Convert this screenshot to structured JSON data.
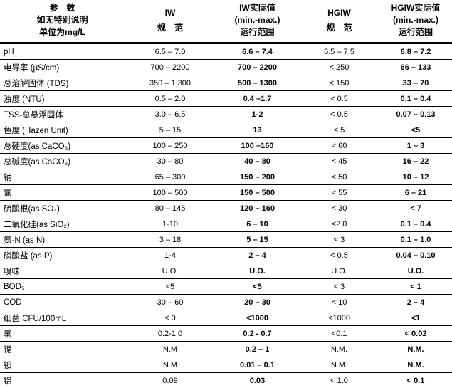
{
  "table": {
    "header": {
      "col1": [
        "参　数",
        "如无特别说明",
        "单位为mg/L"
      ],
      "col2": [
        "IW",
        "规　范"
      ],
      "col3": [
        "IW实际值",
        "(min.-max.)",
        "运行范围"
      ],
      "col4": [
        "HGIW",
        "规　范"
      ],
      "col5": [
        "HGIW实际值",
        "(min.-max.)",
        "运行范围"
      ]
    },
    "rows": [
      {
        "param": "pH",
        "iw_spec": "6.5 – 7.0",
        "iw_actual": "6.6 – 7.4",
        "hgiw_spec": "6.5 – 7.5",
        "hgiw_actual": "6.8 – 7.2"
      },
      {
        "param": "电导率 (μS/cm)",
        "iw_spec": "700 – 2200",
        "iw_actual": "700 – 2200",
        "hgiw_spec": "< 250",
        "hgiw_actual": "66 – 133"
      },
      {
        "param": "总溶解固体 (TDS)",
        "iw_spec": "350 – 1,300",
        "iw_actual": "500 – 1300",
        "hgiw_spec": "< 150",
        "hgiw_actual": "33 – 70"
      },
      {
        "param": "浊度 (NTU)",
        "iw_spec": "0.5 – 2.0",
        "iw_actual": "0.4 –1.7",
        "hgiw_spec": "< 0.5",
        "hgiw_actual": "0.1 – 0.4"
      },
      {
        "param": "TSS-总悬浮固体",
        "iw_spec": "3.0 – 6.5",
        "iw_actual": "1-2",
        "hgiw_spec": "< 0.5",
        "hgiw_actual": "0.07 – 0.13"
      },
      {
        "param": "色度 (Hazen Unit)",
        "iw_spec": "5 – 15",
        "iw_actual": "13",
        "hgiw_spec": "< 5",
        "hgiw_actual": "<5"
      },
      {
        "param": "总硬度(as CaCO₃)",
        "iw_spec": "100 – 250",
        "iw_actual": "100 –160",
        "hgiw_spec": "< 60",
        "hgiw_actual": "1 – 3"
      },
      {
        "param": "总碱度(as CaCO₃)",
        "iw_spec": "30 – 80",
        "iw_actual": "40 – 80",
        "hgiw_spec": "< 45",
        "hgiw_actual": "16 – 22"
      },
      {
        "param": "钠",
        "iw_spec": "65 – 300",
        "iw_actual": "150 – 200",
        "hgiw_spec": "< 50",
        "hgiw_actual": "10 – 12"
      },
      {
        "param": "氯",
        "iw_spec": "100 – 500",
        "iw_actual": "150 – 500",
        "hgiw_spec": "< 55",
        "hgiw_actual": "6 – 21"
      },
      {
        "param": "硫酸根(as SO₄)",
        "iw_spec": "80 – 145",
        "iw_actual": "120 – 160",
        "hgiw_spec": "< 30",
        "hgiw_actual": "< 7"
      },
      {
        "param": "二氧化硅(as SiO₂)",
        "iw_spec": "1-10",
        "iw_actual": "6 – 10",
        "hgiw_spec": "<2.0",
        "hgiw_actual": "0.1 – 0.4"
      },
      {
        "param": "氨-N (as N)",
        "iw_spec": "3 – 18",
        "iw_actual": "5 – 15",
        "hgiw_spec": "< 3",
        "hgiw_actual": "0.1 – 1.0"
      },
      {
        "param": "磷酸盐 (as P)",
        "iw_spec": "1-4",
        "iw_actual": "2 – 4",
        "hgiw_spec": "< 0.5",
        "hgiw_actual": "0.04 – 0.10"
      },
      {
        "param": "嗅味",
        "iw_spec": "U.O.",
        "iw_actual": "U.O.",
        "hgiw_spec": "U.O.",
        "hgiw_actual": "U.O."
      },
      {
        "param": "BOD₅",
        "iw_spec": "<5",
        "iw_actual": "<5",
        "hgiw_spec": "< 3",
        "hgiw_actual": "< 1"
      },
      {
        "param": "COD",
        "iw_spec": "30 – 60",
        "iw_actual": "20 – 30",
        "hgiw_spec": "< 10",
        "hgiw_actual": "2 – 4"
      },
      {
        "param": "细菌 CFU/100mL",
        "iw_spec": "< 0",
        "iw_actual": "<1000",
        "hgiw_spec": "<1000",
        "hgiw_actual": "<1"
      },
      {
        "param": "氟",
        "iw_spec": "0.2-1.0",
        "iw_actual": "0.2 - 0.7",
        "hgiw_spec": "<0.1",
        "hgiw_actual": "< 0.02"
      },
      {
        "param": "锶",
        "iw_spec": "N.M",
        "iw_actual": "0.2 – 1",
        "hgiw_spec": "N.M.",
        "hgiw_actual": "N.M."
      },
      {
        "param": "钡",
        "iw_spec": "N.M",
        "iw_actual": "0.01 – 0.1",
        "hgiw_spec": "N.M.",
        "hgiw_actual": "N.M."
      },
      {
        "param": "铝",
        "iw_spec": "0.09",
        "iw_actual": "0.03",
        "hgiw_spec": "< 1.0",
        "hgiw_actual": "< 0.1"
      }
    ]
  }
}
